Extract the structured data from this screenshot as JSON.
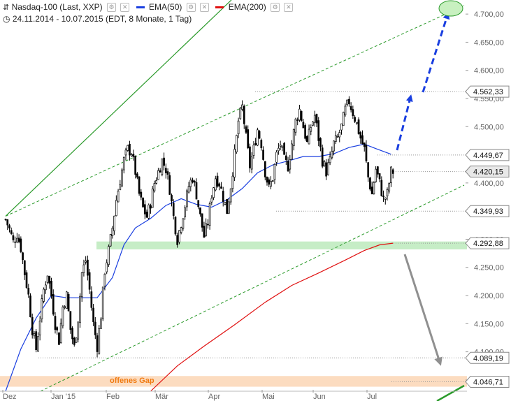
{
  "header": {
    "instrument": "Nasdaq-100 (Last, XXP)",
    "ema50_label": "EMA(50)",
    "ema200_label": "EMA(200)",
    "range": "24.11.2014 - 10.07.2015 (EDT, 8 Monate, 1 Tag)"
  },
  "colors": {
    "price": "#000000",
    "ema50": "#1a3fe0",
    "ema200": "#e01010",
    "trend_channel": "#2a9a2a",
    "projection_up": "#1a3fe0",
    "projection_down": "#909090",
    "support_zone": "#b8e8b8",
    "gap_zone": "#fbd3b0",
    "target_circle": "#c8f0c0"
  },
  "chart_data": {
    "type": "candlestick",
    "x_ticks": [
      "Dez",
      "Jan '15",
      "Feb",
      "Mär",
      "Apr",
      "Mai",
      "Jun",
      "Jul"
    ],
    "y_ticks": [
      "4.050,00",
      "4.100,00",
      "4.150,00",
      "4.200,00",
      "4.250,00",
      "4.300,00",
      "4.350,00",
      "4.400,00",
      "4.450,00",
      "4.500,00",
      "4.550,00",
      "4.600,00",
      "4.650,00",
      "4.700,00"
    ],
    "ylim": [
      4030,
      4725
    ],
    "price_tags": [
      {
        "label": "4.562,33",
        "value": 4562.33
      },
      {
        "label": "4.449,67",
        "value": 4449.67
      },
      {
        "label": "4.420,15",
        "value": 4420.15
      },
      {
        "label": "4.349,93",
        "value": 4349.93
      },
      {
        "label": "4.292,88",
        "value": 4292.88
      },
      {
        "label": "4.089,19",
        "value": 4089.19
      },
      {
        "label": "4.046,71",
        "value": 4046.71
      }
    ],
    "zones": [
      {
        "name": "support",
        "from": 4282,
        "to": 4296
      },
      {
        "name": "gap",
        "from": 4038,
        "to": 4057,
        "label": "offenes Gap"
      }
    ],
    "close_path": [
      [
        0,
        4335
      ],
      [
        2,
        4318
      ],
      [
        4,
        4295
      ],
      [
        6,
        4310
      ],
      [
        8,
        4285
      ],
      [
        10,
        4240
      ],
      [
        12,
        4200
      ],
      [
        14,
        4140
      ],
      [
        16,
        4105
      ],
      [
        18,
        4160
      ],
      [
        20,
        4210
      ],
      [
        22,
        4240
      ],
      [
        24,
        4200
      ],
      [
        26,
        4150
      ],
      [
        28,
        4120
      ],
      [
        30,
        4180
      ],
      [
        32,
        4200
      ],
      [
        34,
        4140
      ],
      [
        36,
        4108
      ],
      [
        38,
        4160
      ],
      [
        40,
        4240
      ],
      [
        42,
        4262
      ],
      [
        44,
        4210
      ],
      [
        46,
        4150
      ],
      [
        48,
        4110
      ],
      [
        50,
        4165
      ],
      [
        52,
        4245
      ],
      [
        54,
        4280
      ],
      [
        56,
        4320
      ],
      [
        58,
        4370
      ],
      [
        60,
        4405
      ],
      [
        62,
        4440
      ],
      [
        64,
        4460
      ],
      [
        66,
        4455
      ],
      [
        68,
        4420
      ],
      [
        70,
        4380
      ],
      [
        72,
        4355
      ],
      [
        74,
        4340
      ],
      [
        76,
        4365
      ],
      [
        78,
        4400
      ],
      [
        80,
        4420
      ],
      [
        82,
        4440
      ],
      [
        84,
        4425
      ],
      [
        86,
        4390
      ],
      [
        88,
        4340
      ],
      [
        90,
        4300
      ],
      [
        92,
        4330
      ],
      [
        94,
        4360
      ],
      [
        96,
        4395
      ],
      [
        98,
        4410
      ],
      [
        100,
        4380
      ],
      [
        102,
        4340
      ],
      [
        104,
        4305
      ],
      [
        106,
        4330
      ],
      [
        108,
        4380
      ],
      [
        110,
        4410
      ],
      [
        112,
        4400
      ],
      [
        114,
        4375
      ],
      [
        116,
        4350
      ],
      [
        118,
        4395
      ],
      [
        120,
        4450
      ],
      [
        122,
        4510
      ],
      [
        124,
        4535
      ],
      [
        126,
        4480
      ],
      [
        128,
        4430
      ],
      [
        130,
        4460
      ],
      [
        132,
        4495
      ],
      [
        134,
        4470
      ],
      [
        136,
        4420
      ],
      [
        138,
        4390
      ],
      [
        140,
        4410
      ],
      [
        142,
        4450
      ],
      [
        144,
        4470
      ],
      [
        146,
        4440
      ],
      [
        148,
        4430
      ],
      [
        150,
        4470
      ],
      [
        152,
        4510
      ],
      [
        154,
        4530
      ],
      [
        156,
        4500
      ],
      [
        158,
        4470
      ],
      [
        160,
        4500
      ],
      [
        162,
        4520
      ],
      [
        164,
        4480
      ],
      [
        166,
        4440
      ],
      [
        168,
        4420
      ],
      [
        170,
        4440
      ],
      [
        172,
        4470
      ],
      [
        174,
        4480
      ],
      [
        176,
        4500
      ],
      [
        178,
        4530
      ],
      [
        180,
        4545
      ],
      [
        182,
        4525
      ],
      [
        184,
        4505
      ],
      [
        186,
        4480
      ],
      [
        188,
        4460
      ],
      [
        190,
        4410
      ],
      [
        192,
        4380
      ],
      [
        194,
        4425
      ],
      [
        196,
        4400
      ],
      [
        198,
        4370
      ],
      [
        200,
        4380
      ],
      [
        202,
        4420
      ],
      [
        203,
        4420
      ]
    ],
    "ema50_path": [
      [
        0,
        4030
      ],
      [
        8,
        4105
      ],
      [
        16,
        4160
      ],
      [
        24,
        4200
      ],
      [
        32,
        4196
      ],
      [
        40,
        4196
      ],
      [
        48,
        4196
      ],
      [
        56,
        4232
      ],
      [
        62,
        4290
      ],
      [
        68,
        4320
      ],
      [
        76,
        4337
      ],
      [
        84,
        4360
      ],
      [
        92,
        4372
      ],
      [
        100,
        4362
      ],
      [
        108,
        4357
      ],
      [
        116,
        4370
      ],
      [
        124,
        4390
      ],
      [
        132,
        4418
      ],
      [
        140,
        4432
      ],
      [
        148,
        4439
      ],
      [
        156,
        4447
      ],
      [
        164,
        4447
      ],
      [
        172,
        4452
      ],
      [
        180,
        4463
      ],
      [
        188,
        4469
      ],
      [
        194,
        4461
      ],
      [
        202,
        4451
      ]
    ],
    "ema200_path": [
      [
        76,
        4030
      ],
      [
        90,
        4075
      ],
      [
        104,
        4110
      ],
      [
        120,
        4148
      ],
      [
        136,
        4188
      ],
      [
        150,
        4218
      ],
      [
        164,
        4240
      ],
      [
        178,
        4263
      ],
      [
        188,
        4280
      ],
      [
        196,
        4290
      ],
      [
        203,
        4293
      ]
    ]
  }
}
